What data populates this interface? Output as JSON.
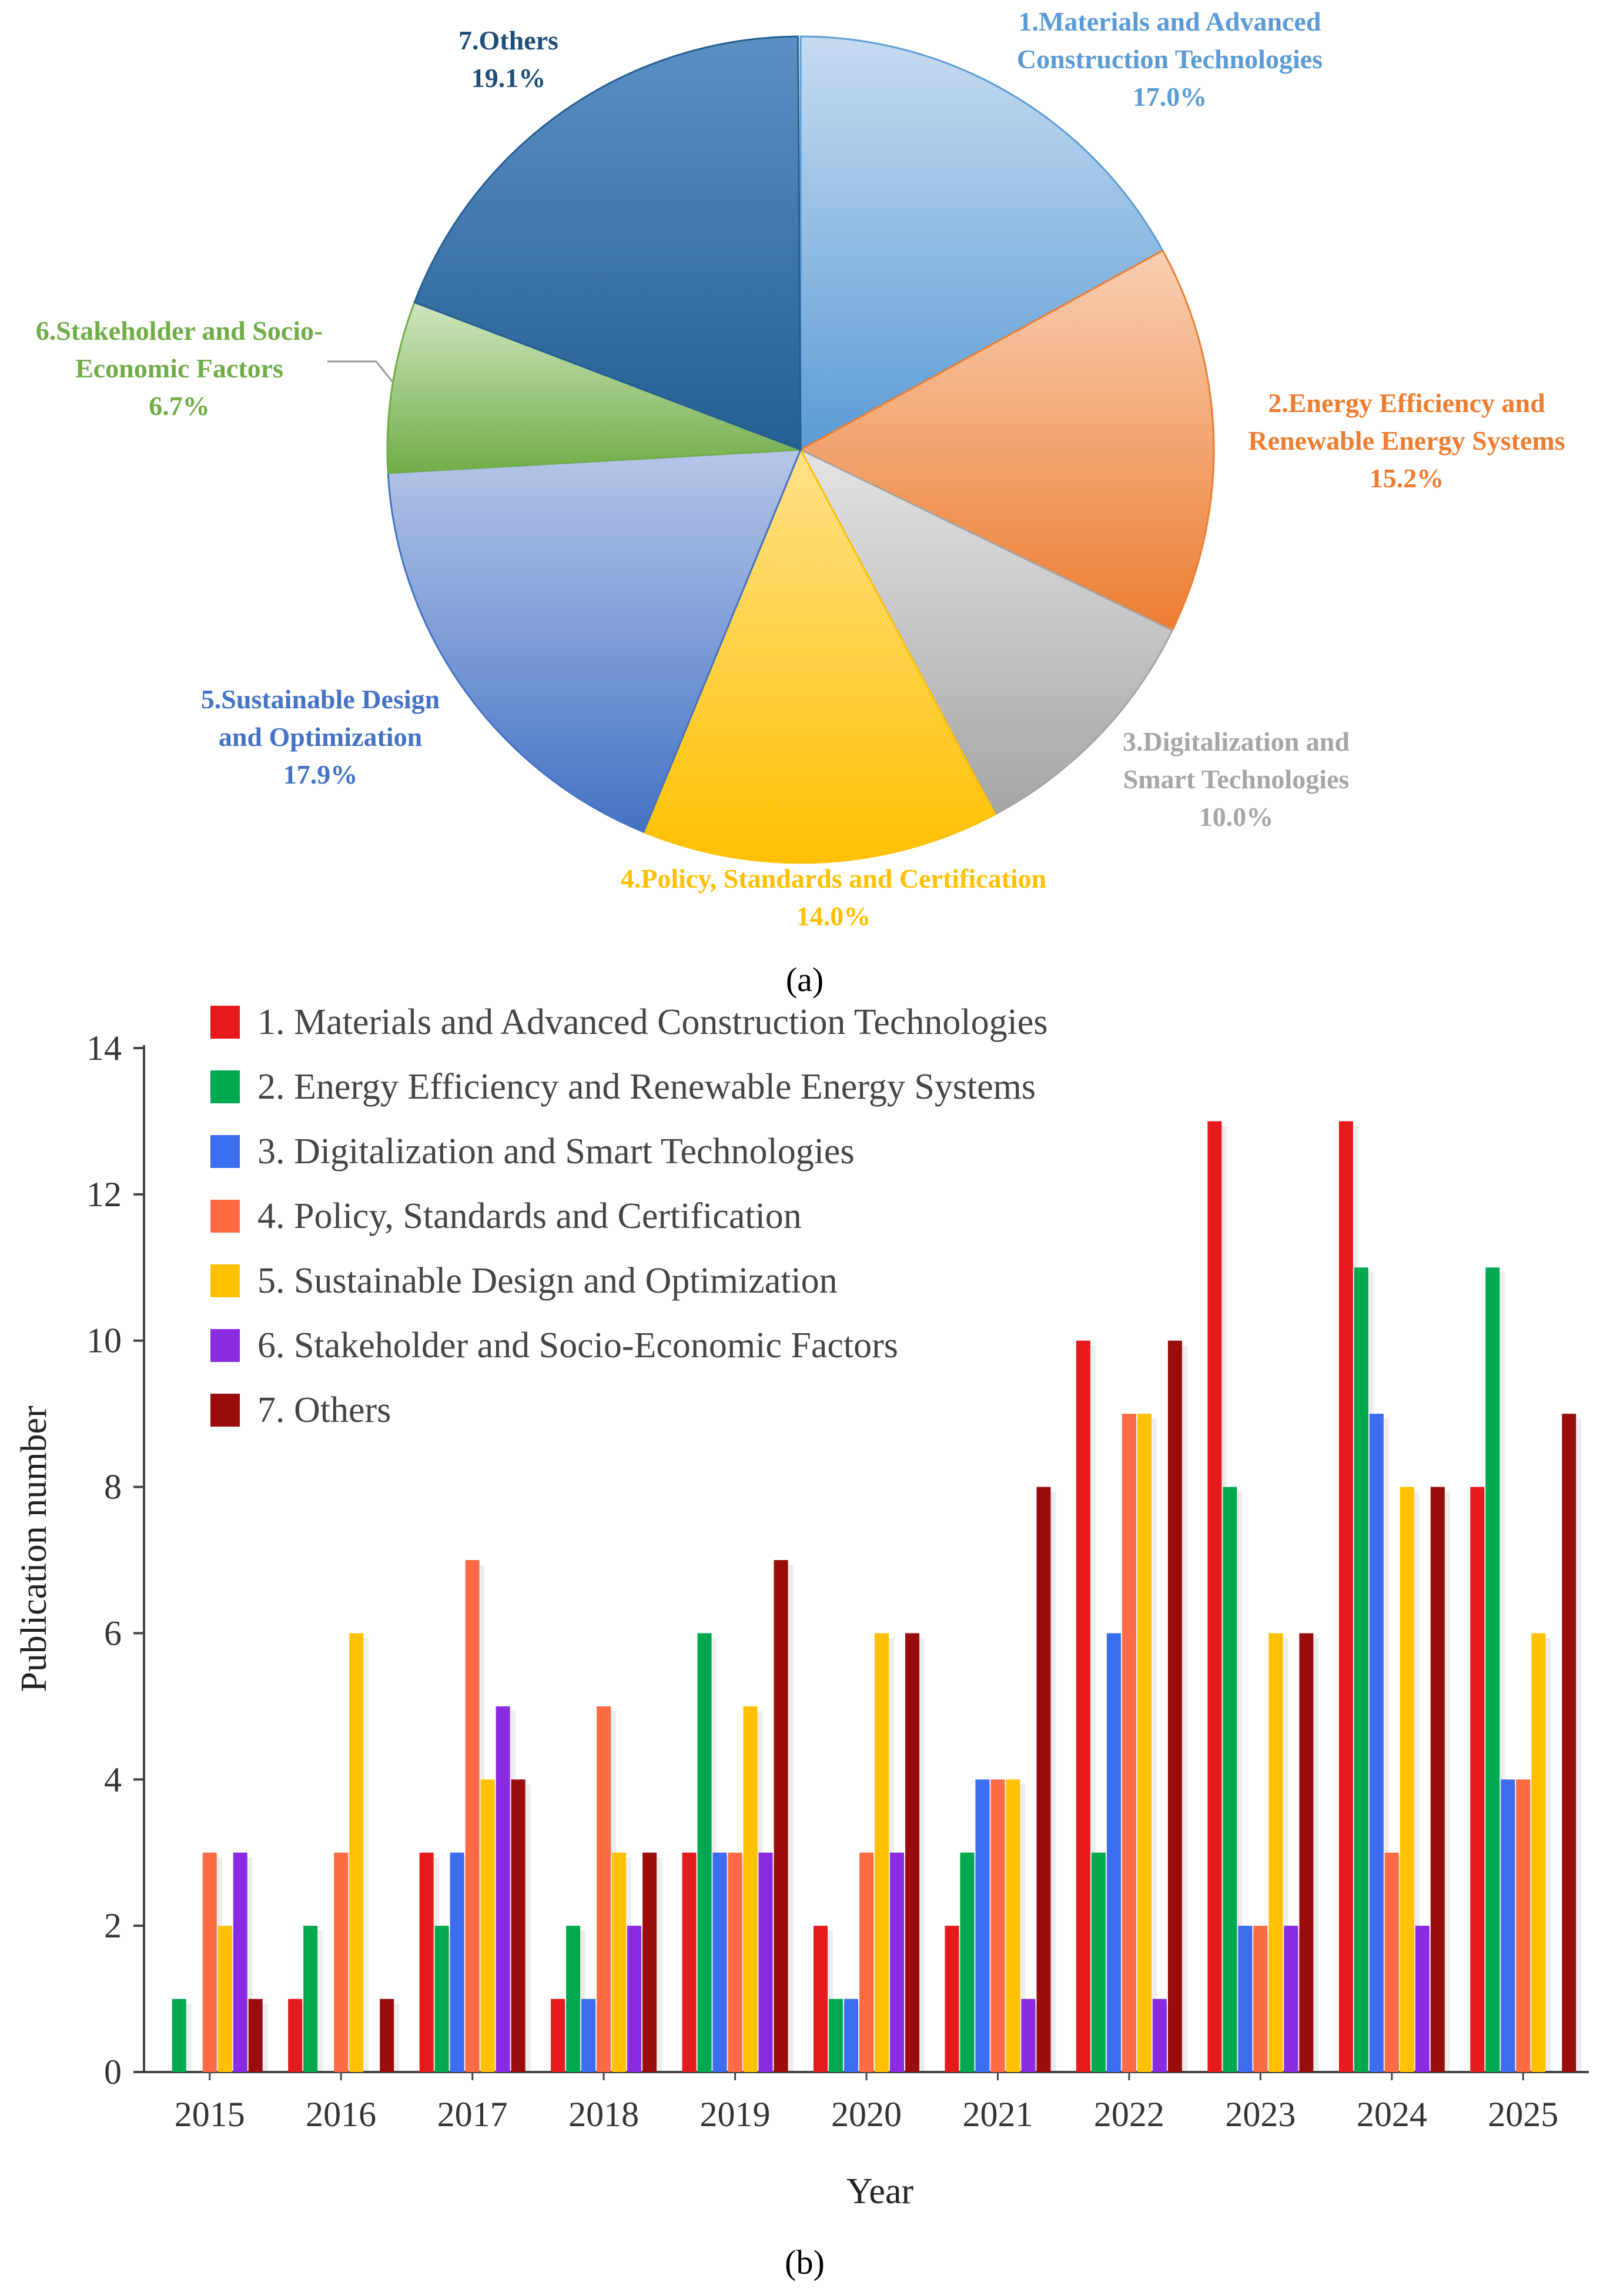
{
  "figure": {
    "panel_a_label": "(a)",
    "panel_b_label": "(b)"
  },
  "chart_data": [
    {
      "type": "pie",
      "panel": "a",
      "title": "",
      "slices": [
        {
          "id": 1,
          "label_lines": [
            "1.Materials and Advanced",
            "Construction Technologies"
          ],
          "pct_text": "17.0%",
          "value": 17.0,
          "color": "#5B9BD5",
          "color_light": "#C6DBF1"
        },
        {
          "id": 2,
          "label_lines": [
            "2.Energy Efficiency and",
            "Renewable Energy Systems"
          ],
          "pct_text": "15.2%",
          "value": 15.2,
          "color": "#ED7D31",
          "color_light": "#F8CFB3"
        },
        {
          "id": 3,
          "label_lines": [
            "3.Digitalization and",
            "Smart Technologies"
          ],
          "pct_text": "10.0%",
          "value": 10.0,
          "color": "#A5A5A5",
          "color_light": "#E4E4E4"
        },
        {
          "id": 4,
          "label_lines": [
            "4.Policy, Standards and Certification"
          ],
          "pct_text": "14.0%",
          "value": 14.0,
          "color": "#FFC000",
          "color_light": "#FFE28A"
        },
        {
          "id": 5,
          "label_lines": [
            "5.Sustainable Design",
            "and Optimization"
          ],
          "pct_text": "17.9%",
          "value": 17.9,
          "color": "#4472C4",
          "color_light": "#B5C6E8"
        },
        {
          "id": 6,
          "label_lines": [
            "6.Stakeholder and Socio-",
            "Economic Factors"
          ],
          "pct_text": "6.7%",
          "value": 6.7,
          "color": "#70AD47",
          "color_light": "#CFE5BF"
        },
        {
          "id": 7,
          "label_lines": [
            "7.Others"
          ],
          "pct_text": "19.1%",
          "value": 19.1,
          "color": "#255E91",
          "color_light": "#5B90C4"
        }
      ]
    },
    {
      "type": "bar",
      "panel": "b",
      "title": "",
      "xlabel": "Year",
      "ylabel": "Publication number",
      "ylim": [
        0,
        14
      ],
      "yticks": [
        "0",
        "2",
        "4",
        "6",
        "8",
        "10",
        "12",
        "14"
      ],
      "legend_position": "top-left",
      "categories": [
        "2015",
        "2016",
        "2017",
        "2018",
        "2019",
        "2020",
        "2021",
        "2022",
        "2023",
        "2024",
        "2025"
      ],
      "series": [
        {
          "name": "1. Materials and Advanced Construction Technologies",
          "color": "#E41A1C",
          "values": [
            0,
            1,
            3,
            1,
            3,
            2,
            2,
            10,
            13,
            13,
            8
          ]
        },
        {
          "name": "2. Energy Efficiency and Renewable Energy Systems",
          "color": "#00A94F",
          "values": [
            1,
            2,
            2,
            2,
            6,
            1,
            3,
            3,
            8,
            11,
            11
          ]
        },
        {
          "name": "3. Digitalization and Smart Technologies",
          "color": "#3C6CF0",
          "values": [
            0,
            0,
            3,
            1,
            3,
            1,
            4,
            6,
            2,
            9,
            4
          ]
        },
        {
          "name": "4. Policy, Standards and Certification",
          "color": "#FF6B45",
          "values": [
            3,
            3,
            7,
            5,
            3,
            3,
            4,
            9,
            2,
            3,
            4
          ]
        },
        {
          "name": "5. Sustainable Design and Optimization",
          "color": "#FFC000",
          "values": [
            2,
            6,
            4,
            3,
            5,
            6,
            4,
            9,
            6,
            8,
            6
          ]
        },
        {
          "name": "6. Stakeholder and Socio-Economic Factors",
          "color": "#8A2BE2",
          "values": [
            3,
            0,
            5,
            2,
            3,
            3,
            1,
            1,
            2,
            2,
            0
          ]
        },
        {
          "name": "7. Others",
          "color": "#9B0D0D",
          "values": [
            1,
            1,
            4,
            3,
            7,
            6,
            8,
            10,
            6,
            8,
            9
          ]
        }
      ]
    }
  ]
}
